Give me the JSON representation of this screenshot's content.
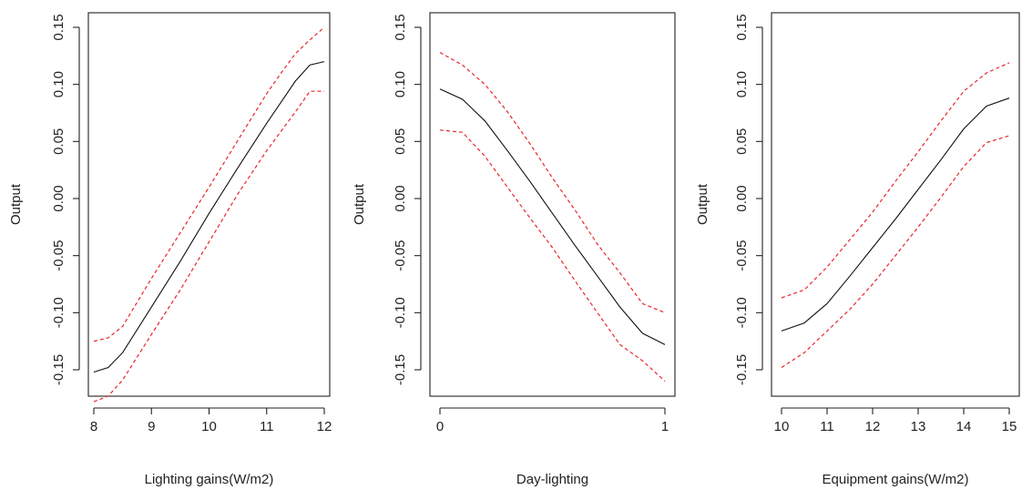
{
  "colors": {
    "fit": "#111111",
    "band": "#e8262d"
  },
  "chart_data": [
    {
      "type": "line",
      "xlabel": "Lighting gains(W/m2)",
      "ylabel": "Output",
      "xlim": [
        8,
        12
      ],
      "ylim": [
        -0.15,
        0.15
      ],
      "xticks": [
        "8",
        "9",
        "10",
        "11",
        "12"
      ],
      "yticks": [
        "-0.15",
        "-0.10",
        "-0.05",
        "0.00",
        "0.05",
        "0.10",
        "0.15"
      ],
      "grid": false,
      "series": [
        {
          "x": [
            8.0,
            8.25,
            8.5,
            9.0,
            9.5,
            10.0,
            10.5,
            11.0,
            11.5,
            11.75,
            12.0
          ],
          "values": [
            -0.152,
            -0.148,
            -0.135,
            -0.095,
            -0.055,
            -0.013,
            0.027,
            0.066,
            0.103,
            0.117,
            0.12
          ]
        },
        {
          "x": [
            8.0,
            8.25,
            8.5,
            9.0,
            9.5,
            10.0,
            10.5,
            11.0,
            11.25,
            11.5,
            11.75,
            12.0
          ],
          "values": [
            -0.125,
            -0.122,
            -0.112,
            -0.07,
            -0.03,
            0.01,
            0.051,
            0.092,
            0.11,
            0.127,
            0.139,
            0.15
          ]
        },
        {
          "x": [
            8.0,
            8.25,
            8.5,
            9.0,
            9.5,
            10.0,
            10.5,
            11.0,
            11.5,
            11.75,
            12.0
          ],
          "values": [
            -0.178,
            -0.173,
            -0.159,
            -0.119,
            -0.08,
            -0.038,
            0.004,
            0.042,
            0.076,
            0.094,
            0.094
          ]
        }
      ]
    },
    {
      "type": "line",
      "xlabel": "Day-lighting",
      "ylabel": "Output",
      "xlim": [
        0,
        1
      ],
      "ylim": [
        -0.15,
        0.15
      ],
      "xticks": [
        "0",
        "1"
      ],
      "yticks": [
        "-0.15",
        "-0.10",
        "-0.05",
        "0.00",
        "0.05",
        "0.10",
        "0.15"
      ],
      "grid": false,
      "series": [
        {
          "x": [
            0.0,
            0.1,
            0.2,
            0.3,
            0.4,
            0.5,
            0.6,
            0.7,
            0.8,
            0.9,
            1.0
          ],
          "values": [
            0.096,
            0.087,
            0.068,
            0.042,
            0.015,
            -0.013,
            -0.041,
            -0.068,
            -0.095,
            -0.118,
            -0.128
          ]
        },
        {
          "x": [
            0.0,
            0.1,
            0.2,
            0.3,
            0.4,
            0.5,
            0.6,
            0.7,
            0.8,
            0.9,
            1.0
          ],
          "values": [
            0.128,
            0.117,
            0.1,
            0.076,
            0.048,
            0.018,
            -0.01,
            -0.04,
            -0.065,
            -0.092,
            -0.1
          ]
        },
        {
          "x": [
            0.0,
            0.1,
            0.2,
            0.3,
            0.4,
            0.5,
            0.6,
            0.7,
            0.8,
            0.9,
            1.0
          ],
          "values": [
            0.06,
            0.058,
            0.037,
            0.01,
            -0.017,
            -0.043,
            -0.072,
            -0.1,
            -0.128,
            -0.142,
            -0.16
          ]
        }
      ]
    },
    {
      "type": "line",
      "xlabel": "Equipment gains(W/m2)",
      "ylabel": "Output",
      "xlim": [
        10,
        15
      ],
      "ylim": [
        -0.15,
        0.15
      ],
      "xticks": [
        "10",
        "11",
        "12",
        "13",
        "14",
        "15"
      ],
      "yticks": [
        "-0.15",
        "-0.10",
        "-0.05",
        "0.00",
        "0.05",
        "0.10",
        "0.15"
      ],
      "grid": false,
      "series": [
        {
          "x": [
            10.0,
            10.5,
            11.0,
            11.5,
            12.0,
            12.5,
            13.0,
            13.5,
            14.0,
            14.5,
            15.0
          ],
          "values": [
            -0.116,
            -0.109,
            -0.092,
            -0.068,
            -0.043,
            -0.018,
            0.008,
            0.034,
            0.061,
            0.081,
            0.088
          ]
        },
        {
          "x": [
            10.0,
            10.5,
            11.0,
            11.5,
            12.0,
            12.5,
            13.0,
            13.5,
            14.0,
            14.5,
            15.0
          ],
          "values": [
            -0.087,
            -0.08,
            -0.06,
            -0.036,
            -0.012,
            0.015,
            0.041,
            0.068,
            0.094,
            0.11,
            0.119
          ]
        },
        {
          "x": [
            10.0,
            10.5,
            11.0,
            11.5,
            12.0,
            12.5,
            13.0,
            13.5,
            14.0,
            14.5,
            15.0
          ],
          "values": [
            -0.148,
            -0.135,
            -0.116,
            -0.097,
            -0.075,
            -0.05,
            -0.025,
            0.001,
            0.028,
            0.049,
            0.055
          ]
        }
      ]
    }
  ]
}
